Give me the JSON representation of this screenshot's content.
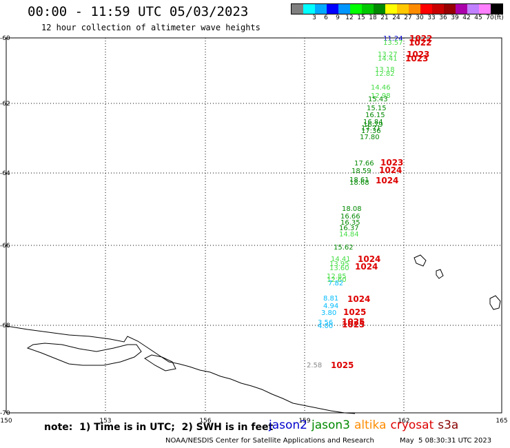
{
  "header": {
    "title": "00:00 - 11:59 UTC 05/03/2023",
    "subtitle": "12 hour collection of altimeter wave heights"
  },
  "scale": {
    "unit": "(ft)",
    "bins": [
      {
        "color": "#7f7f7f",
        "label": ""
      },
      {
        "color": "#00ffff",
        "label": "3"
      },
      {
        "color": "#00aaff",
        "label": "6"
      },
      {
        "color": "#0000ff",
        "label": "9"
      },
      {
        "color": "#0096ff",
        "label": "12"
      },
      {
        "color": "#00ff00",
        "label": "15"
      },
      {
        "color": "#00c800",
        "label": "18"
      },
      {
        "color": "#008800",
        "label": "21"
      },
      {
        "color": "#ffff00",
        "label": "24"
      },
      {
        "color": "#ffc800",
        "label": "27"
      },
      {
        "color": "#ff8c00",
        "label": "30"
      },
      {
        "color": "#ff0000",
        "label": "33"
      },
      {
        "color": "#c80000",
        "label": "36"
      },
      {
        "color": "#960000",
        "label": "39"
      },
      {
        "color": "#aa00aa",
        "label": "42"
      },
      {
        "color": "#c080ff",
        "label": "45"
      },
      {
        "color": "#ff80ff",
        "label": "70"
      },
      {
        "color": "#000000",
        "label": ""
      }
    ]
  },
  "map": {
    "lat_labels": [
      "-60",
      "-62",
      "-64",
      "-66",
      "-68",
      "-70"
    ],
    "lon_labels": [
      "150",
      "153",
      "156",
      "159",
      "162",
      "165"
    ],
    "colors": {
      "light_green": "#44dd44",
      "dark_green": "#008800",
      "cyan": "#00bbff",
      "grey": "#888888",
      "blue": "#0000cc",
      "red": "#dd0000"
    },
    "wave_heights": [
      {
        "text": "11.24",
        "color": "blue"
      },
      {
        "text": "13.57",
        "color": "light_green"
      },
      {
        "text": "13.27",
        "color": "light_green"
      },
      {
        "text": "14.41",
        "color": "light_green"
      },
      {
        "text": "13.18",
        "color": "light_green"
      },
      {
        "text": "12.82",
        "color": "light_green"
      },
      {
        "text": "14.46",
        "color": "light_green"
      },
      {
        "text": "12.98",
        "color": "light_green"
      },
      {
        "text": "15.43",
        "color": "dark_green"
      },
      {
        "text": "15.15",
        "color": "dark_green"
      },
      {
        "text": "16.15",
        "color": "dark_green"
      },
      {
        "text": "16.84",
        "color": "dark_green"
      },
      {
        "text": "16.79",
        "color": "dark_green"
      },
      {
        "text": "17.71",
        "color": "dark_green"
      },
      {
        "text": "17.36",
        "color": "dark_green"
      },
      {
        "text": "17.80",
        "color": "dark_green"
      },
      {
        "text": "17.66",
        "color": "dark_green"
      },
      {
        "text": "18.59",
        "color": "dark_green"
      },
      {
        "text": "18.61",
        "color": "dark_green"
      },
      {
        "text": "18.68",
        "color": "dark_green"
      },
      {
        "text": "18.08",
        "color": "dark_green"
      },
      {
        "text": "16.66",
        "color": "dark_green"
      },
      {
        "text": "16.35",
        "color": "dark_green"
      },
      {
        "text": "16.37",
        "color": "dark_green"
      },
      {
        "text": "14.84",
        "color": "light_green"
      },
      {
        "text": "15.62",
        "color": "dark_green"
      },
      {
        "text": "14.41",
        "color": "light_green"
      },
      {
        "text": "13.95",
        "color": "light_green"
      },
      {
        "text": "13.60",
        "color": "light_green"
      },
      {
        "text": "12.85",
        "color": "light_green"
      },
      {
        "text": "12.60",
        "color": "light_green"
      },
      {
        "text": "7.82",
        "color": "cyan"
      },
      {
        "text": "8.81",
        "color": "cyan"
      },
      {
        "text": "4.94",
        "color": "cyan"
      },
      {
        "text": "3.80",
        "color": "cyan"
      },
      {
        "text": "3.56",
        "color": "cyan"
      },
      {
        "text": "4.00",
        "color": "cyan"
      },
      {
        "text": "2.58",
        "color": "grey"
      }
    ],
    "pressure_labels": [
      "1022",
      "1022",
      "1023",
      "1023",
      "1023",
      "1024",
      "1024",
      "1024",
      "1024",
      "1024",
      "1025",
      "1025",
      "1025",
      "1025"
    ]
  },
  "footer": {
    "note": "note:  1) Time is in UTC;  2) SWH is in feet",
    "legend": [
      {
        "label": "jason2",
        "color": "#0000cc"
      },
      {
        "label": "jason3",
        "color": "#008800"
      },
      {
        "label": "altika",
        "color": "#ff8c00"
      },
      {
        "label": "cryosat",
        "color": "#dd0000"
      },
      {
        "label": "s3a",
        "color": "#880000"
      }
    ],
    "credit": "NOAA/NESDIS Center for Satellite Applications and Research",
    "timestamp": "May  5 08:30:31 UTC 2023"
  }
}
